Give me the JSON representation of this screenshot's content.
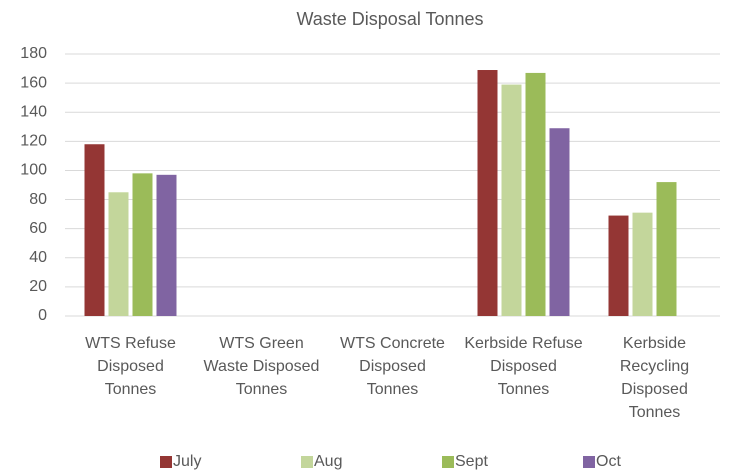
{
  "chart_data": {
    "type": "bar",
    "title": "Waste Disposal Tonnes",
    "categories": [
      "WTS Refuse Disposed Tonnes",
      "WTS Green Waste Disposed Tonnes",
      "WTS Concrete Disposed Tonnes",
      "Kerbside Refuse Disposed Tonnes",
      "Kerbside Recycling Disposed Tonnes"
    ],
    "series": [
      {
        "name": "July",
        "color": "#943634",
        "values": [
          118,
          null,
          null,
          169,
          69
        ]
      },
      {
        "name": "Aug",
        "color": "#c3d69b",
        "values": [
          85,
          null,
          null,
          159,
          71
        ]
      },
      {
        "name": "Sept",
        "color": "#9bbb59",
        "values": [
          98,
          null,
          null,
          167,
          92
        ]
      },
      {
        "name": "Oct",
        "color": "#8064a2",
        "values": [
          97,
          null,
          null,
          129,
          null
        ]
      }
    ],
    "ylim": [
      0,
      180
    ],
    "yticks": [
      0,
      20,
      40,
      60,
      80,
      100,
      120,
      140,
      160,
      180
    ],
    "grid": true,
    "legend": "bottom"
  }
}
